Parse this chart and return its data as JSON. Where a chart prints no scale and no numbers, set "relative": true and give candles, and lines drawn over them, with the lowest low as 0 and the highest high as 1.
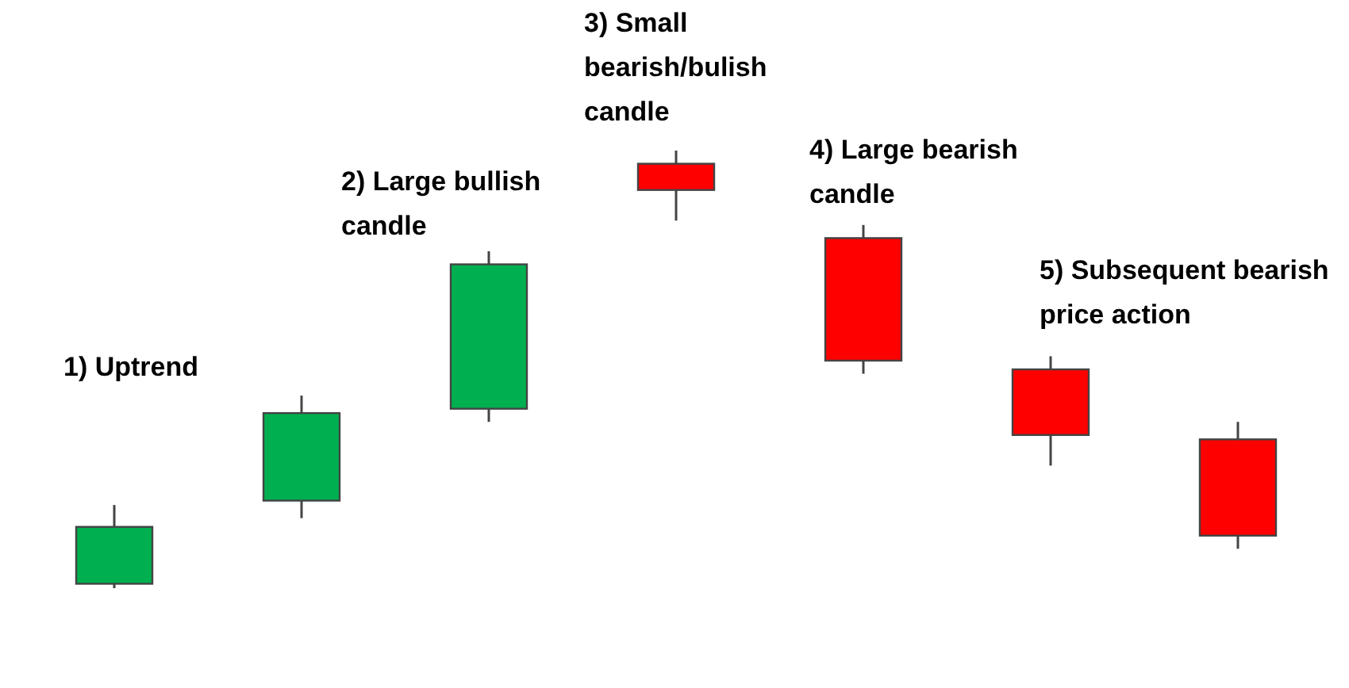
{
  "chart_data": {
    "type": "candlestick",
    "relative": true,
    "categories": [
      null,
      null,
      null,
      null,
      null,
      null,
      null
    ],
    "ohlc": [
      [
        0.01,
        0.19,
        0,
        0.14
      ],
      [
        0.2,
        0.44,
        0.16,
        0.4
      ],
      [
        0.41,
        0.77,
        0.38,
        0.74
      ],
      [
        0.97,
        1,
        0.84,
        0.91
      ],
      [
        0.8,
        0.83,
        0.49,
        0.52
      ],
      [
        0.5,
        0.53,
        0.28,
        0.35
      ],
      [
        0.34,
        0.38,
        0.09,
        0.12
      ]
    ],
    "colors": [
      "#00b050",
      "#00b050",
      "#00b050",
      "#ff0000",
      "#ff0000",
      "#ff0000",
      "#ff0000"
    ],
    "annotations": [
      "1) Uptrend",
      "2) Large bullish candle",
      "3) Small bearish/bulish candle",
      "4) Large bearish candle",
      "5) Subsequent bearish price action"
    ]
  }
}
